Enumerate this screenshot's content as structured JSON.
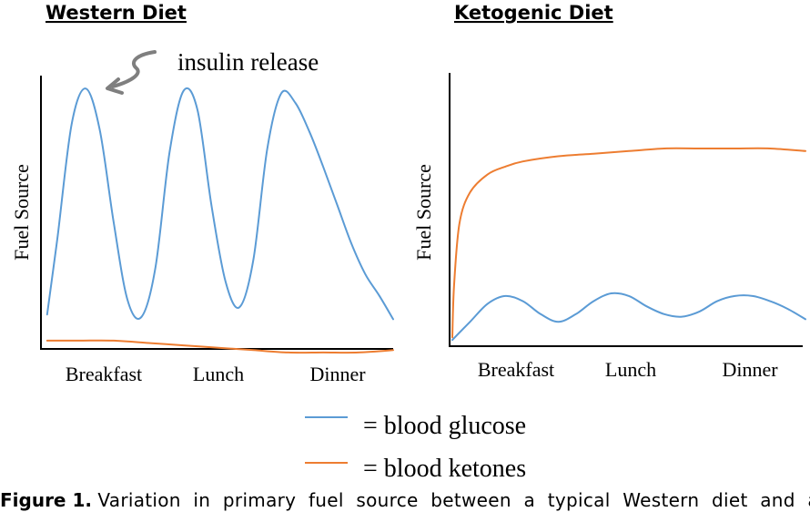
{
  "chart_data": [
    {
      "type": "line",
      "title": "Western Diet",
      "ylabel": "Fuel Source",
      "xlabel": "",
      "categories": [
        "Breakfast",
        "Lunch",
        "Dinner"
      ],
      "xlim": [
        0,
        10
      ],
      "ylim": [
        0,
        10
      ],
      "annotation": "insulin release",
      "series": [
        {
          "key": "glucose",
          "name": "blood glucose",
          "color": "#5b9bd5",
          "x": [
            0.1,
            0.4,
            0.8,
            1.2,
            1.6,
            2.0,
            2.4,
            2.8,
            3.2,
            3.6,
            4.0,
            4.4,
            4.8,
            5.2,
            5.6,
            6.0,
            6.4,
            6.8,
            7.2,
            7.6,
            8.0,
            8.4,
            8.8,
            9.2,
            9.6,
            10.0
          ],
          "y": [
            0.3,
            3.6,
            8.3,
            9.8,
            8.1,
            4.2,
            0.9,
            0.2,
            2.3,
            7.1,
            9.7,
            8.9,
            4.9,
            1.7,
            0.6,
            2.6,
            7.3,
            9.6,
            9.2,
            8.0,
            6.5,
            4.9,
            3.3,
            2.0,
            1.1,
            0.1
          ]
        },
        {
          "key": "ketones",
          "name": "blood ketones",
          "color": "#ed7d31",
          "x": [
            0.1,
            1.0,
            2.0,
            3.0,
            4.0,
            5.0,
            6.0,
            7.0,
            8.0,
            9.0,
            10.0
          ],
          "y": [
            -0.8,
            -0.8,
            -0.8,
            -0.9,
            -1.0,
            -1.1,
            -1.2,
            -1.3,
            -1.3,
            -1.3,
            -1.2
          ]
        }
      ]
    },
    {
      "type": "line",
      "title": "Ketogenic Diet",
      "ylabel": "Fuel Source",
      "xlabel": "",
      "categories": [
        "Breakfast",
        "Lunch",
        "Dinner"
      ],
      "xlim": [
        0,
        10
      ],
      "ylim": [
        0,
        10
      ],
      "series": [
        {
          "key": "glucose",
          "name": "blood glucose",
          "color": "#5b9bd5",
          "x": [
            0.0,
            0.5,
            1.0,
            1.5,
            2.0,
            2.5,
            3.0,
            3.5,
            4.0,
            4.5,
            5.0,
            5.5,
            6.0,
            6.5,
            7.0,
            7.5,
            8.0,
            8.5,
            9.0,
            9.5,
            10.0
          ],
          "y": [
            0.1,
            0.8,
            1.5,
            1.8,
            1.6,
            1.1,
            0.8,
            1.1,
            1.6,
            1.9,
            1.8,
            1.4,
            1.1,
            1.0,
            1.2,
            1.6,
            1.8,
            1.8,
            1.6,
            1.3,
            0.9
          ]
        },
        {
          "key": "ketones",
          "name": "blood ketones",
          "color": "#ed7d31",
          "x": [
            0.0,
            0.05,
            0.2,
            0.5,
            1.0,
            1.5,
            2.0,
            3.0,
            4.0,
            5.0,
            6.0,
            7.0,
            8.0,
            9.0,
            10.0
          ],
          "y": [
            0.2,
            2.2,
            4.6,
            5.8,
            6.5,
            6.8,
            7.0,
            7.2,
            7.3,
            7.4,
            7.5,
            7.5,
            7.5,
            7.5,
            7.4
          ]
        }
      ]
    }
  ],
  "legend": [
    {
      "label": "= blood glucose",
      "color": "#5b9bd5"
    },
    {
      "label": "= blood ketones",
      "color": "#ed7d31"
    }
  ],
  "caption": {
    "label": "Figure 1.",
    "text": "Variation in primary fuel source between a typical Western diet and a"
  }
}
